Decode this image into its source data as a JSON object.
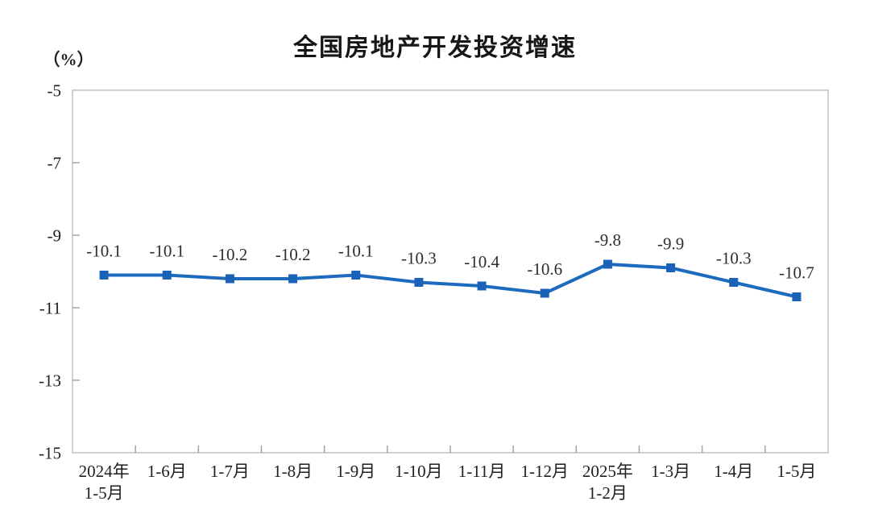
{
  "page": {
    "background": "#ffffff"
  },
  "chart_data": {
    "type": "line",
    "title": "全国房地产开发投资增速",
    "unit_label": "（%）",
    "categories": [
      "2024年\n1-5月",
      "1-6月",
      "1-7月",
      "1-8月",
      "1-9月",
      "1-10月",
      "1-11月",
      "1-12月",
      "2025年\n1-2月",
      "1-3月",
      "1-4月",
      "1-5月"
    ],
    "values": [
      -10.1,
      -10.1,
      -10.2,
      -10.2,
      -10.1,
      -10.3,
      -10.4,
      -10.6,
      -9.8,
      -9.9,
      -10.3,
      -10.7
    ],
    "data_labels": [
      "-10.1",
      "-10.1",
      "-10.2",
      "-10.2",
      "-10.1",
      "-10.3",
      "-10.4",
      "-10.6",
      "-9.8",
      "-9.9",
      "-10.3",
      "-10.7"
    ],
    "xlabel": "",
    "ylabel": "",
    "ylim": [
      -15,
      -5
    ],
    "yticks": [
      -5,
      -7,
      -9,
      -11,
      -13,
      -15
    ],
    "ytick_labels": [
      "-5",
      "-7",
      "-9",
      "-11",
      "-13",
      "-15"
    ],
    "grid": false,
    "legend": "none",
    "colors": {
      "line": "#1e6abf",
      "marker": "#1a62b8",
      "data_label_text": "#2d2d2d",
      "axis_text": "#1f1f1f",
      "plot_border": "#c4c4c4",
      "tick": "#9e9e9e",
      "title_text": "#161616",
      "background": "#ffffff"
    }
  }
}
